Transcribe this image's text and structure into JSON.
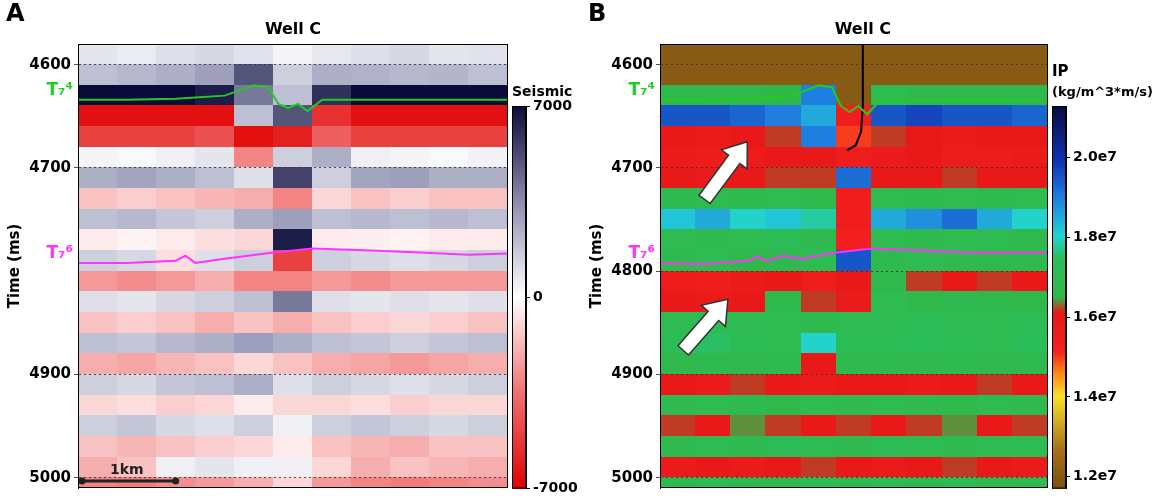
{
  "chart_data": [
    {
      "type": "heatmap",
      "panel": "A",
      "title": "Well C",
      "well_x": 2.2,
      "y_label": "Time (ms)",
      "xlim": [
        0,
        4.4
      ],
      "ylim": [
        4580,
        5010
      ],
      "yticks": [
        4600,
        4700,
        4900,
        5000
      ],
      "grid": true,
      "tick_labels": "y",
      "x": [
        0.2,
        0.6,
        1.0,
        1.4,
        1.8,
        2.2,
        2.6,
        3.0,
        3.4,
        3.8,
        4.2
      ],
      "y": [
        4590,
        4610,
        4630,
        4650,
        4670,
        4690,
        4710,
        4730,
        4750,
        4770,
        4790,
        4810,
        4830,
        4850,
        4870,
        4890,
        4910,
        4930,
        4950,
        4970,
        4990,
        5010
      ],
      "cells": [
        [
          800,
          600,
          1000,
          1200,
          900,
          300,
          700,
          1000,
          1200,
          800,
          900
        ],
        [
          2000,
          2200,
          2500,
          3000,
          5000,
          1500,
          2500,
          2400,
          2200,
          2300,
          2000
        ],
        [
          7000,
          7000,
          7000,
          6500,
          4000,
          2000,
          6000,
          7000,
          7000,
          7000,
          7000
        ],
        [
          -6500,
          -6500,
          -6500,
          -6500,
          2000,
          5000,
          -5500,
          -6500,
          -6500,
          -6500,
          -6500
        ],
        [
          -5000,
          -5000,
          -5000,
          -4500,
          -6500,
          -6000,
          -4000,
          -5000,
          -5000,
          -5000,
          -5000
        ],
        [
          300,
          200,
          500,
          800,
          -3000,
          1500,
          2500,
          500,
          300,
          200,
          400
        ],
        [
          2500,
          2800,
          2500,
          2000,
          1000,
          5500,
          1500,
          2800,
          3000,
          2500,
          2500
        ],
        [
          -1500,
          -1200,
          -1500,
          -1800,
          -2000,
          -3000,
          -1000,
          -1500,
          -1200,
          -1500,
          -1500
        ],
        [
          2000,
          2200,
          1800,
          1500,
          2500,
          3000,
          2000,
          2200,
          2000,
          2200,
          2000
        ],
        [
          -500,
          -300,
          -500,
          -800,
          -1000,
          6500,
          -500,
          -400,
          -300,
          -500,
          -500
        ],
        [
          1500,
          1200,
          -800,
          1000,
          1500,
          -5000,
          1500,
          1200,
          1000,
          1200,
          1500
        ],
        [
          -2500,
          -2800,
          -2500,
          -2000,
          -3000,
          -3000,
          -2500,
          -2800,
          -2500,
          -2500,
          -2500
        ],
        [
          1000,
          800,
          1200,
          1500,
          2000,
          4000,
          1000,
          800,
          1000,
          800,
          1000
        ],
        [
          -1500,
          -1200,
          -1500,
          -2000,
          -1500,
          -2000,
          -1500,
          -1200,
          -1000,
          -1200,
          -1500
        ],
        [
          2000,
          1800,
          2200,
          2500,
          3000,
          2500,
          2000,
          1800,
          1500,
          1800,
          2000
        ],
        [
          -2000,
          -2200,
          -1800,
          -1500,
          -1000,
          -1500,
          -2000,
          -2200,
          -2500,
          -2200,
          -2000
        ],
        [
          1500,
          1200,
          1800,
          2000,
          2500,
          1000,
          1500,
          1200,
          1000,
          1200,
          1500
        ],
        [
          -1000,
          -800,
          -1200,
          -1000,
          -500,
          -1000,
          -1000,
          -800,
          -1200,
          -1000,
          -1000
        ],
        [
          1500,
          1800,
          1200,
          1000,
          1500,
          500,
          1500,
          1800,
          1500,
          1200,
          1500
        ],
        [
          -1500,
          -1800,
          -1500,
          -1200,
          -1000,
          -500,
          -1500,
          -1800,
          -2000,
          -1500,
          -1500
        ],
        [
          -2000,
          -1500,
          500,
          800,
          500,
          500,
          -1000,
          -2000,
          -1500,
          -1800,
          -2000
        ],
        [
          -3000,
          -3200,
          -2800,
          -2500,
          -2000,
          -1000,
          -2500,
          -3000,
          -3200,
          -3000,
          -2800
        ]
      ],
      "colorbar": {
        "label": "Seismic",
        "range": [
          -7000,
          7000
        ],
        "ticks": [
          7000,
          0,
          -7000
        ]
      },
      "horizons": [
        {
          "name": "T₇⁴",
          "color": "#22cc22",
          "x": [
            0,
            0.5,
            1.0,
            1.5,
            1.8,
            1.95,
            2.05,
            2.15,
            2.25,
            2.35,
            2.5,
            3.0,
            3.5,
            4.0,
            4.4
          ],
          "y": [
            4634,
            4634,
            4633,
            4630,
            4620,
            4622,
            4638,
            4642,
            4638,
            4645,
            4634,
            4634,
            4634,
            4634,
            4634
          ]
        },
        {
          "name": "T₇⁶",
          "color": "#ff33ff",
          "x": [
            0,
            0.5,
            1.0,
            1.1,
            1.2,
            1.5,
            2.0,
            2.4,
            3.0,
            3.5,
            4.0,
            4.4
          ],
          "y": [
            4792,
            4792,
            4790,
            4785,
            4792,
            4788,
            4782,
            4778,
            4780,
            4782,
            4784,
            4783
          ]
        }
      ],
      "scale_bar": {
        "length": 1,
        "label": "1km"
      }
    },
    {
      "type": "heatmap",
      "panel": "B",
      "title": "Well C",
      "well_x": 2.3,
      "y_label": "Time (ms)",
      "xlim": [
        0,
        4.4
      ],
      "ylim": [
        4580,
        5010
      ],
      "yticks": [
        4600,
        4700,
        4800,
        4900,
        5000
      ],
      "grid": true,
      "tick_labels": "y",
      "x": [
        0.2,
        0.6,
        1.0,
        1.4,
        1.8,
        2.2,
        2.6,
        3.0,
        3.4,
        3.8,
        4.2
      ],
      "y": [
        4590,
        4610,
        4630,
        4650,
        4670,
        4690,
        4710,
        4730,
        4750,
        4770,
        4790,
        4810,
        4830,
        4850,
        4870,
        4890,
        4910,
        4930,
        4950,
        4970,
        4990,
        5010
      ],
      "cells": [
        [
          12000000.0,
          12000000.0,
          12000000.0,
          12000000.0,
          12000000.0,
          12000000.0,
          12000000.0,
          12000000.0,
          12000000.0,
          12000000.0,
          12000000.0
        ],
        [
          12000000.0,
          12000000.0,
          12000000.0,
          12000000.0,
          12000000.0,
          12000000.0,
          12000000.0,
          12000000.0,
          12000000.0,
          12000000.0,
          12000000.0
        ],
        [
          16600000.0,
          16600000.0,
          16600000.0,
          16500000.0,
          19000000.0,
          12000000.0,
          17000000.0,
          16600000.0,
          16600000.0,
          16600000.0,
          16600000.0
        ],
        [
          19500000.0,
          19500000.0,
          19300000.0,
          19000000.0,
          18500000.0,
          15500000.0,
          19500000.0,
          19700000.0,
          19500000.0,
          19500000.0,
          19300000.0
        ],
        [
          16000000.0,
          15800000.0,
          16000000.0,
          16200000.0,
          19000000.0,
          15000000.0,
          16200000.0,
          16000000.0,
          15800000.0,
          16000000.0,
          16000000.0
        ],
        [
          15800000.0,
          15600000.0,
          15700000.0,
          16000000.0,
          16000000.0,
          15500000.0,
          15800000.0,
          16000000.0,
          15700000.0,
          15600000.0,
          15800000.0
        ],
        [
          16000000.0,
          15800000.0,
          16000000.0,
          16200000.0,
          16200000.0,
          19200000.0,
          16000000.0,
          16000000.0,
          16200000.0,
          16000000.0,
          16000000.0
        ],
        [
          16800000.0,
          17000000.0,
          16800000.0,
          17000000.0,
          16600000.0,
          15500000.0,
          17000000.0,
          16800000.0,
          17000000.0,
          16800000.0,
          17000000.0
        ],
        [
          18200000.0,
          18500000.0,
          18000000.0,
          18200000.0,
          17800000.0,
          15500000.0,
          18500000.0,
          18800000.0,
          19200000.0,
          18500000.0,
          18000000.0
        ],
        [
          17000000.0,
          16800000.0,
          17000000.0,
          17200000.0,
          16800000.0,
          15200000.0,
          17000000.0,
          16800000.0,
          17000000.0,
          17000000.0,
          16800000.0
        ],
        [
          16800000.0,
          17000000.0,
          16600000.0,
          16800000.0,
          17000000.0,
          19500000.0,
          16800000.0,
          17000000.0,
          16800000.0,
          16600000.0,
          16800000.0
        ],
        [
          15700000.0,
          15500000.0,
          15800000.0,
          16000000.0,
          15500000.0,
          16000000.0,
          16600000.0,
          16200000.0,
          16000000.0,
          16200000.0,
          16000000.0
        ],
        [
          16000000.0,
          15800000.0,
          16000000.0,
          16600000.0,
          16200000.0,
          15800000.0,
          17000000.0,
          16600000.0,
          16800000.0,
          16600000.0,
          16600000.0
        ],
        [
          17000000.0,
          17200000.0,
          17000000.0,
          17000000.0,
          16800000.0,
          17000000.0,
          17000000.0,
          17200000.0,
          17000000.0,
          17000000.0,
          17200000.0
        ],
        [
          17200000.0,
          17500000.0,
          17200000.0,
          17000000.0,
          18000000.0,
          17200000.0,
          17200000.0,
          17400000.0,
          17200000.0,
          17000000.0,
          17400000.0
        ],
        [
          16600000.0,
          16800000.0,
          16600000.0,
          16800000.0,
          16000000.0,
          16600000.0,
          16800000.0,
          16600000.0,
          16800000.0,
          16600000.0,
          16800000.0
        ],
        [
          16000000.0,
          15800000.0,
          16200000.0,
          16000000.0,
          15800000.0,
          16000000.0,
          16000000.0,
          15800000.0,
          16000000.0,
          16200000.0,
          16000000.0
        ],
        [
          16800000.0,
          17000000.0,
          16800000.0,
          16600000.0,
          17000000.0,
          16800000.0,
          17000000.0,
          16800000.0,
          16600000.0,
          17000000.0,
          16800000.0
        ],
        [
          16200000.0,
          16000000.0,
          16400000.0,
          16200000.0,
          16000000.0,
          16200000.0,
          16000000.0,
          16200000.0,
          16400000.0,
          16000000.0,
          16200000.0
        ],
        [
          16800000.0,
          17000000.0,
          16800000.0,
          17200000.0,
          17000000.0,
          16800000.0,
          17200000.0,
          17000000.0,
          16800000.0,
          17000000.0,
          17000000.0
        ],
        [
          15800000.0,
          16000000.0,
          15800000.0,
          16000000.0,
          16200000.0,
          16000000.0,
          15800000.0,
          16000000.0,
          16200000.0,
          16000000.0,
          15800000.0
        ],
        [
          16800000.0,
          17000000.0,
          16800000.0,
          16600000.0,
          17000000.0,
          16800000.0,
          17000000.0,
          16800000.0,
          17000000.0,
          16600000.0,
          16800000.0
        ]
      ],
      "colorbar": {
        "label": "IP",
        "units": "(kg/m^3*m/s)",
        "range": [
          11700000.0,
          21300000.0
        ],
        "ticks": [
          {
            "value": 20000000.0,
            "label": "2.0e7"
          },
          {
            "value": 18000000.0,
            "label": "1.8e7"
          },
          {
            "value": 16000000.0,
            "label": "1.6e7"
          },
          {
            "value": 14000000.0,
            "label": "1.4e7"
          },
          {
            "value": 12000000.0,
            "label": "1.2e7"
          }
        ]
      },
      "horizons": [
        {
          "name": "T₇⁴",
          "color": "#22cc22",
          "x": [
            0,
            0.5,
            1.0,
            1.5,
            1.8,
            1.95,
            2.05,
            2.15,
            2.25,
            2.35,
            2.5,
            3.0,
            3.5,
            4.0,
            4.4
          ],
          "y": [
            4634,
            4634,
            4633,
            4630,
            4620,
            4622,
            4640,
            4646,
            4640,
            4648,
            4634,
            4634,
            4634,
            4634,
            4634
          ]
        },
        {
          "name": "T₇⁶",
          "color": "#ff33ff",
          "x": [
            0,
            0.5,
            1.0,
            1.1,
            1.2,
            1.4,
            1.6,
            2.0,
            2.4,
            3.0,
            3.5,
            4.4
          ],
          "y": [
            4792,
            4793,
            4790,
            4786,
            4790,
            4785,
            4788,
            4782,
            4778,
            4780,
            4782,
            4782
          ]
        }
      ],
      "well_path": {
        "x": [
          2.3,
          2.3,
          2.28,
          2.22,
          2.12
        ],
        "y": [
          4580,
          4640,
          4665,
          4678,
          4683
        ]
      }
    }
  ]
}
